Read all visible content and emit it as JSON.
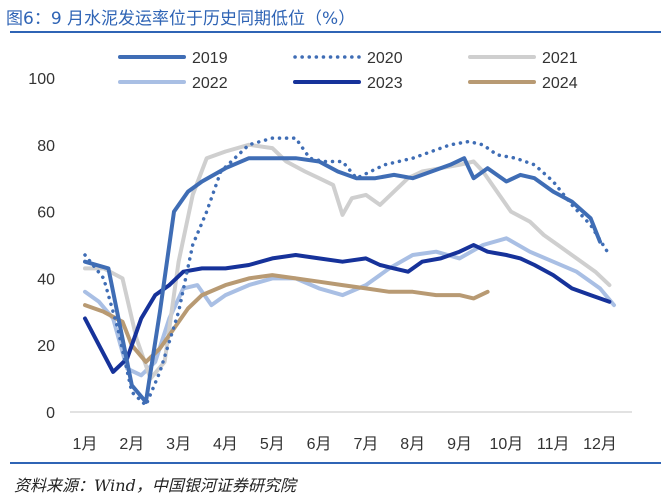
{
  "header": {
    "title": "图6：9 月水泥发运率位于历史同期低位（%）"
  },
  "footer": {
    "source": "资料来源：Wind，中国银河证券研究院"
  },
  "colors": {
    "s2019": "#3f6db5",
    "s2020": "#3f6db5",
    "s2021": "#cfcfcf",
    "s2022": "#a9bfe4",
    "s2023": "#16329a",
    "s2024": "#b89a73",
    "axis": "#d9d9d9",
    "text": "#333333"
  },
  "chart_data": {
    "type": "line",
    "title": "图6：9 月水泥发运率位于历史同期低位（%）",
    "xlabel": "",
    "ylabel": "",
    "ylim": [
      0,
      100
    ],
    "yticks": [
      "0",
      "20",
      "40",
      "60",
      "80",
      "100"
    ],
    "xticks": [
      "1月",
      "2月",
      "3月",
      "4月",
      "5月",
      "6月",
      "7月",
      "8月",
      "9月",
      "10月",
      "11月",
      "12月"
    ],
    "grid": false,
    "legend": "top",
    "series": [
      {
        "name": "2019",
        "style": "solid-thick",
        "x": [
          1,
          1.5,
          1.8,
          2.0,
          2.3,
          2.6,
          2.9,
          3.2,
          3.5,
          4.0,
          4.5,
          5.0,
          5.5,
          6.0,
          6.4,
          6.8,
          7.2,
          7.6,
          8.0,
          8.4,
          8.8,
          9.1,
          9.3,
          9.6,
          10.0,
          10.3,
          10.6,
          11.0,
          11.4,
          11.8,
          12.0
        ],
        "values": [
          45,
          43,
          22,
          8,
          3,
          30,
          60,
          66,
          69,
          73,
          76,
          76,
          76,
          75,
          72,
          70,
          70,
          71,
          70,
          72,
          74,
          76,
          70,
          73,
          69,
          71,
          70,
          66,
          63,
          58,
          51
        ]
      },
      {
        "name": "2020",
        "style": "dotted",
        "x": [
          1,
          1.4,
          1.7,
          2.0,
          2.3,
          2.6,
          3.0,
          3.3,
          3.6,
          3.9,
          4.2,
          4.5,
          5.0,
          5.5,
          5.8,
          6.1,
          6.5,
          6.8,
          7.1,
          7.4,
          7.7,
          8.0,
          8.4,
          8.8,
          9.2,
          9.5,
          9.8,
          10.2,
          10.6,
          11.0,
          11.4,
          11.8,
          12.2
        ],
        "values": [
          47,
          40,
          25,
          6,
          2,
          12,
          30,
          50,
          60,
          72,
          76,
          80,
          82,
          82,
          76,
          75,
          75,
          70,
          72,
          74,
          75,
          76,
          78,
          80,
          81,
          80,
          77,
          76,
          74,
          69,
          62,
          56,
          47
        ]
      },
      {
        "name": "2021",
        "style": "solid-light",
        "x": [
          1,
          1.4,
          1.8,
          2.1,
          2.4,
          2.7,
          3.0,
          3.3,
          3.6,
          4.0,
          4.5,
          5.0,
          5.3,
          5.7,
          6.0,
          6.3,
          6.5,
          6.7,
          7.0,
          7.3,
          7.6,
          7.9,
          8.2,
          8.6,
          9.0,
          9.3,
          9.5,
          9.8,
          10.1,
          10.5,
          10.8,
          11.1,
          11.5,
          11.9,
          12.2
        ],
        "values": [
          43,
          43,
          40,
          22,
          10,
          15,
          45,
          65,
          76,
          78,
          80,
          79,
          75,
          72,
          70,
          68,
          59,
          64,
          65,
          62,
          66,
          70,
          72,
          73,
          74,
          75,
          72,
          66,
          60,
          57,
          53,
          50,
          46,
          42,
          38
        ]
      },
      {
        "name": "2022",
        "style": "solid-pale",
        "x": [
          1,
          1.3,
          1.6,
          1.9,
          2.2,
          2.5,
          2.8,
          3.1,
          3.4,
          3.7,
          4.0,
          4.5,
          5.0,
          5.5,
          6.0,
          6.5,
          7.0,
          7.5,
          8.0,
          8.5,
          9.0,
          9.5,
          10.0,
          10.5,
          11.0,
          11.5,
          12.0,
          12.3
        ],
        "values": [
          36,
          33,
          28,
          13,
          11,
          15,
          28,
          37,
          38,
          32,
          35,
          38,
          40,
          40,
          37,
          35,
          38,
          43,
          47,
          48,
          46,
          50,
          52,
          48,
          45,
          42,
          37,
          32
        ]
      },
      {
        "name": "2023",
        "style": "solid-dark",
        "x": [
          1,
          1.3,
          1.6,
          1.9,
          2.2,
          2.5,
          2.8,
          3.1,
          3.5,
          4.0,
          4.5,
          5.0,
          5.5,
          6.0,
          6.5,
          7.0,
          7.3,
          7.6,
          7.9,
          8.2,
          8.6,
          9.0,
          9.3,
          9.6,
          10.0,
          10.3,
          10.6,
          11.0,
          11.4,
          11.8,
          12.2
        ],
        "values": [
          28,
          20,
          12,
          16,
          28,
          35,
          38,
          42,
          43,
          43,
          44,
          46,
          47,
          46,
          45,
          46,
          44,
          43,
          42,
          45,
          46,
          48,
          50,
          48,
          47,
          46,
          44,
          41,
          37,
          35,
          33
        ]
      },
      {
        "name": "2024",
        "style": "solid-tan",
        "x": [
          1,
          1.4,
          1.8,
          2.0,
          2.3,
          2.6,
          2.9,
          3.2,
          3.5,
          4.0,
          4.5,
          5.0,
          5.5,
          6.0,
          6.5,
          7.0,
          7.5,
          8.0,
          8.5,
          9.0,
          9.3,
          9.6
        ],
        "values": [
          32,
          30,
          27,
          20,
          15,
          19,
          25,
          31,
          35,
          38,
          40,
          41,
          40,
          39,
          38,
          37,
          36,
          36,
          35,
          35,
          34,
          36
        ]
      }
    ]
  }
}
